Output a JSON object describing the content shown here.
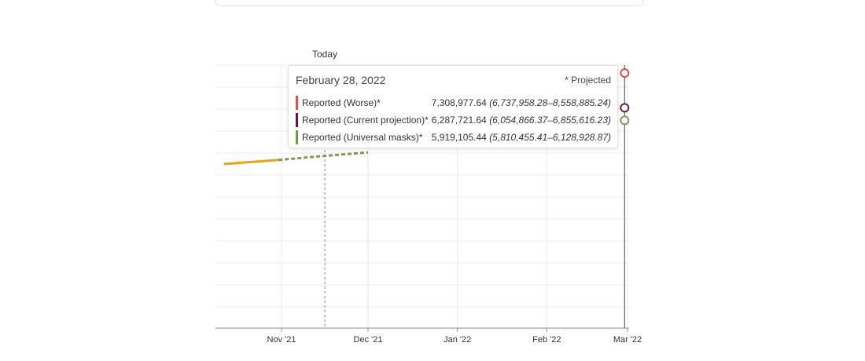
{
  "chart_data": {
    "type": "line",
    "title": "",
    "xlabel": "",
    "ylabel": "",
    "x_ticks": [
      {
        "label": "Nov '21",
        "date": "2021-11-01"
      },
      {
        "label": "Dec '21",
        "date": "2021-12-01"
      },
      {
        "label": "Jan '22",
        "date": "2022-01-01"
      },
      {
        "label": "Feb '22",
        "date": "2022-02-01"
      },
      {
        "label": "Mar '22",
        "date": "2022-03-01"
      }
    ],
    "today": {
      "label": "Today",
      "date": "2021-11-16"
    },
    "hover_date": "2022-02-28",
    "series": [
      {
        "name": "Reported",
        "color": "#e8a317",
        "dashed": false,
        "points": [
          {
            "date": "2021-10-12",
            "value": 4640000
          },
          {
            "date": "2021-10-31",
            "value": 4760000
          }
        ]
      },
      {
        "name": "Reported (Universal masks)",
        "color": "#7a9a5a",
        "dashed": true,
        "points": [
          {
            "date": "2021-10-31",
            "value": 4760000
          },
          {
            "date": "2021-11-16",
            "value": 4880000
          },
          {
            "date": "2021-12-01",
            "value": 4980000
          }
        ]
      }
    ],
    "hover_markers": [
      {
        "name": "Reported (Worse)",
        "color": "#d9534f",
        "value": 7308977.64
      },
      {
        "name": "Reported (Current projection)",
        "color": "#6a1b4d",
        "value": 6287721.64
      },
      {
        "name": "Reported (Universal masks)",
        "color": "#7a9a5a",
        "value": 5919105.44
      }
    ]
  },
  "tooltip": {
    "date": "February 28, 2022",
    "note": "* Projected",
    "rows": [
      {
        "color": "#d9534f",
        "label": "Reported (Worse)*",
        "value": "7,308,977.64",
        "range": "(6,737,958.28–8,558,885.24)"
      },
      {
        "color": "#5c1a45",
        "label": "Reported (Current projection)*",
        "value": "6,287,721.64",
        "range": "(6,054,866.37–6,855,616.23)"
      },
      {
        "color": "#6f9a56",
        "label": "Reported (Universal masks)*",
        "value": "5,919,105.44",
        "range": "(5,810,455.41–6,128,928.87)"
      }
    ]
  }
}
